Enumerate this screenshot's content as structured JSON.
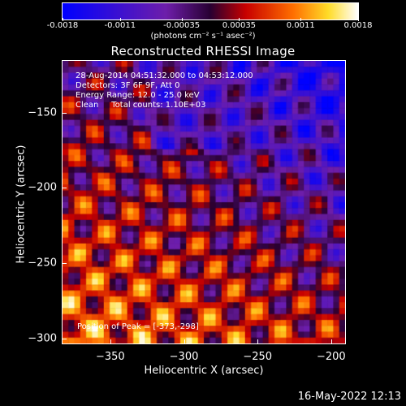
{
  "colorbar": {
    "ticks": [
      "-0.0018",
      "-0.0011",
      "-0.00035",
      "0.00035",
      "0.0011",
      "0.0018"
    ],
    "tick_values": [
      -0.0018,
      -0.0011,
      -0.00035,
      0.00035,
      0.0011,
      0.0018
    ],
    "units": "(photons cm⁻² s⁻¹ asec⁻²)"
  },
  "chart_data": {
    "type": "heatmap",
    "title": "Reconstructed RHESSI Image",
    "xlabel": "Heliocentric X (arcsec)",
    "ylabel": "Heliocentric Y (arcsec)",
    "xlim": [
      -383,
      -190
    ],
    "ylim": [
      -304,
      -115
    ],
    "xticks": [
      {
        "label": "−350",
        "value": -350
      },
      {
        "label": "−300",
        "value": -300
      },
      {
        "label": "−250",
        "value": -250
      },
      {
        "label": "−200",
        "value": -200
      }
    ],
    "yticks": [
      {
        "label": "−150",
        "value": -150
      },
      {
        "label": "−200",
        "value": -200
      },
      {
        "label": "−250",
        "value": -250
      },
      {
        "label": "−300",
        "value": -300
      }
    ],
    "value_range": [
      -0.0018,
      0.0018
    ],
    "peak": [
      -373,
      -298
    ],
    "annotations": [
      "28-Aug-2014 04:51:32.000 to 04:53:12.000",
      "Detectors: 3F 6F 9F, Att 0",
      "Energy Range: 12.0 - 25.0 keV",
      "Clean     Total counts: 1.10E+03"
    ],
    "peak_label": "Position of Peak = [-373,-298]"
  },
  "footer": {
    "timestamp": "16-May-2022 12:13"
  }
}
